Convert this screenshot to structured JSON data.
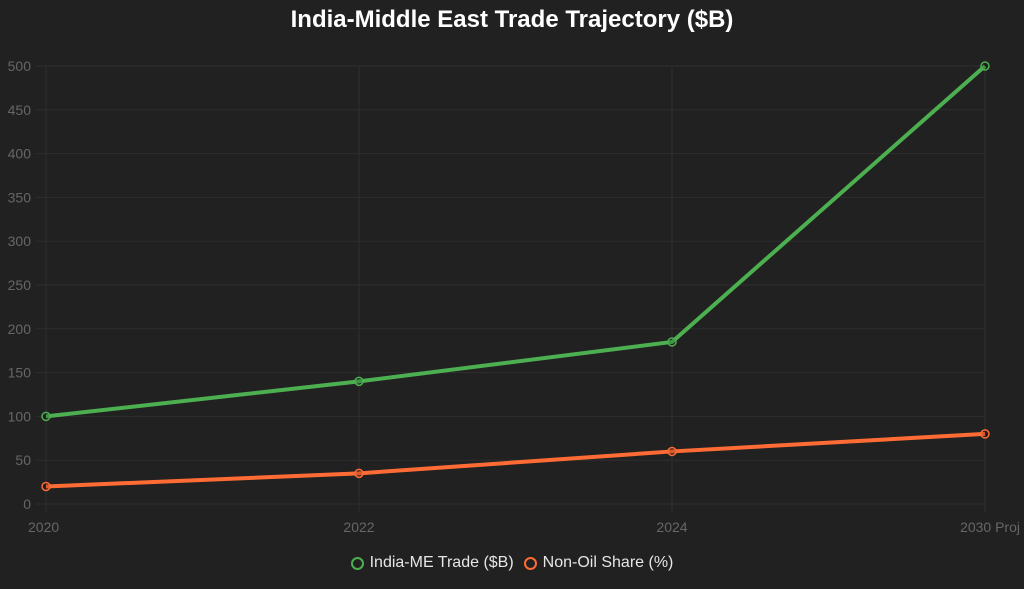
{
  "title": "India-Middle East Trade Trajectory ($B)",
  "colors": {
    "background": "#212121",
    "grid": "#2e2e2e",
    "tick_text": "#666666",
    "series_trade": "#4caf50",
    "series_nonoil": "#ff6b35"
  },
  "legend": [
    {
      "label": "India-ME Trade ($B)",
      "color": "#4caf50"
    },
    {
      "label": "Non-Oil Share (%)",
      "color": "#ff6b35"
    }
  ],
  "chart_data": {
    "type": "line",
    "title": "India-Middle East Trade Trajectory ($B)",
    "categories": [
      "2020",
      "2022",
      "2024",
      "2030 Proj"
    ],
    "series": [
      {
        "name": "India-ME Trade ($B)",
        "values": [
          100,
          140,
          185,
          500
        ],
        "color": "#4caf50"
      },
      {
        "name": "Non-Oil Share (%)",
        "values": [
          20,
          35,
          60,
          80
        ],
        "color": "#ff6b35"
      }
    ],
    "xlabel": "",
    "ylabel": "",
    "ylim": [
      0,
      500
    ],
    "yticks": [
      0,
      50,
      100,
      150,
      200,
      250,
      300,
      350,
      400,
      450,
      500
    ],
    "grid": true,
    "legend_position": "bottom"
  }
}
